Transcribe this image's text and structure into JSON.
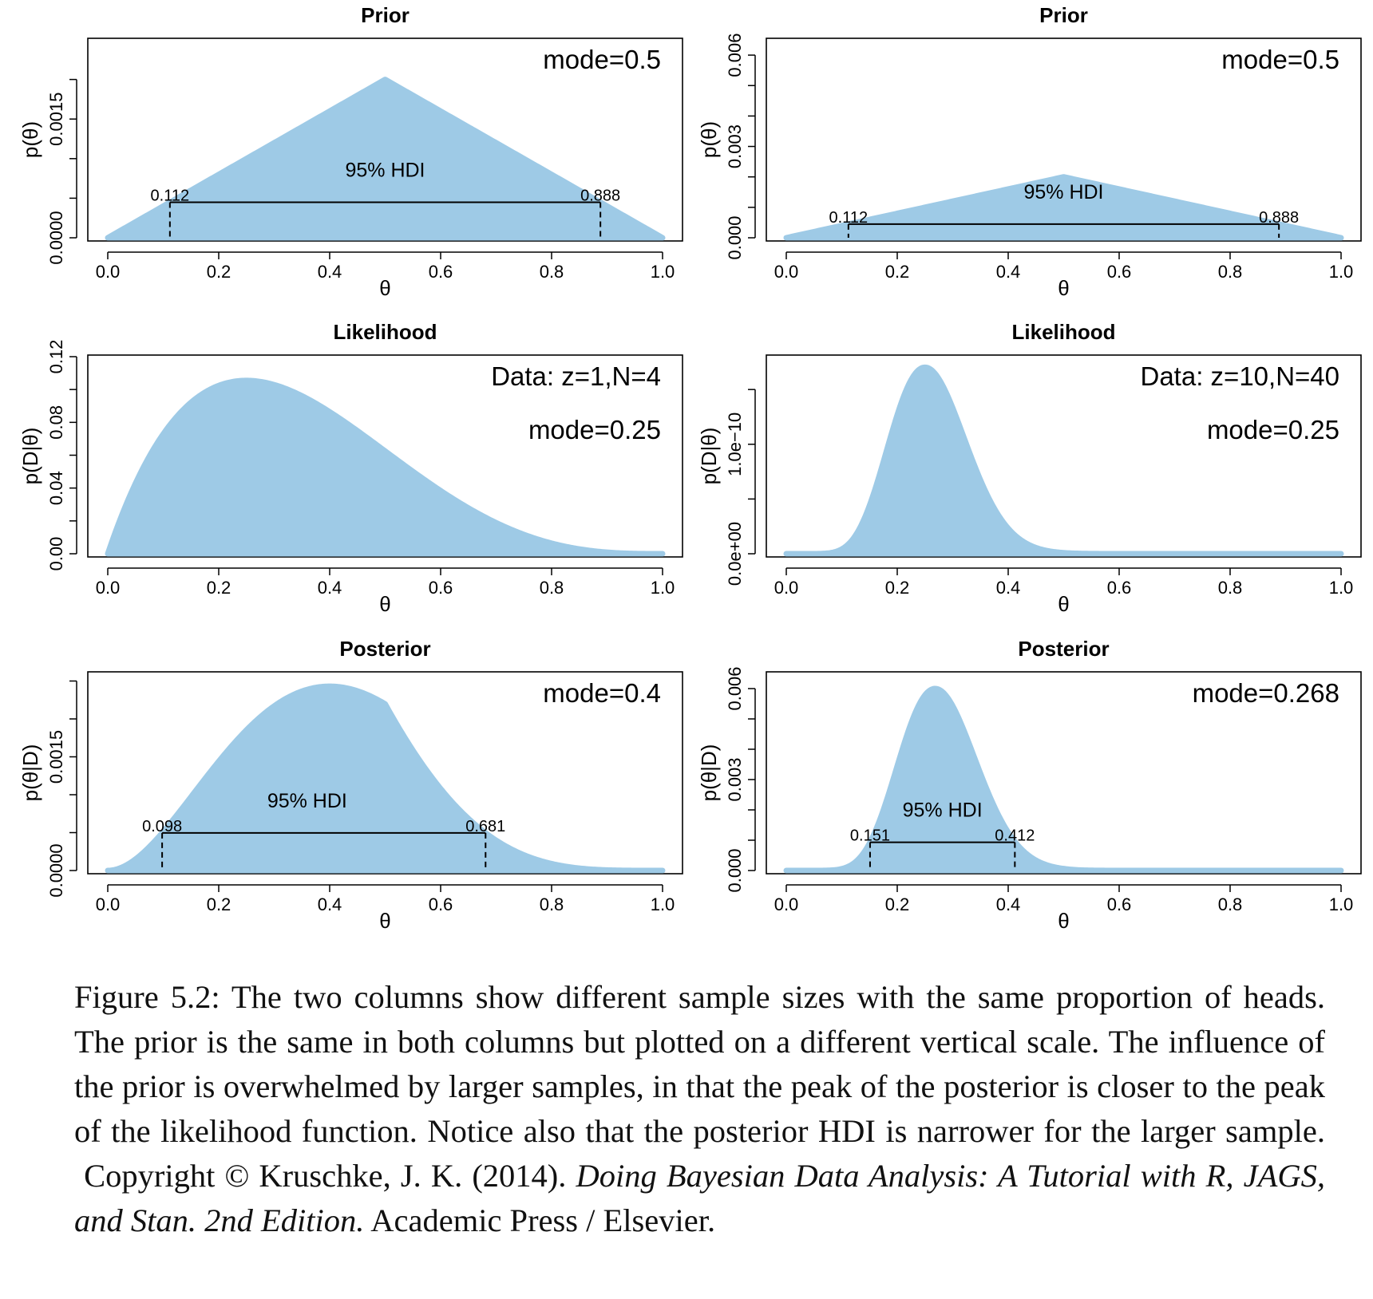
{
  "chart_data": [
    {
      "type": "area",
      "title": "Prior",
      "xlabel": "θ",
      "ylabel": "p(θ)",
      "xlim": [
        0,
        1
      ],
      "ylim": [
        0,
        0.0025
      ],
      "x_ticks": [
        "0.0",
        "0.2",
        "0.4",
        "0.6",
        "0.8",
        "1.0"
      ],
      "y_ticks": [
        "0.0000",
        "0.0015"
      ],
      "y_tick_values": [
        0,
        0.0005,
        0.001,
        0.0015,
        0.002
      ],
      "y_labeled_values": [
        0,
        0.0015
      ],
      "curve": {
        "kind": "triangle",
        "peak_x": 0.5,
        "peak_y": 0.002
      },
      "annotations": [
        "mode=0.5"
      ],
      "hdi": {
        "label": "95% HDI",
        "low": 0.112,
        "high": 0.888,
        "low_label": "0.112",
        "high_label": "0.888"
      }
    },
    {
      "type": "area",
      "title": "Prior",
      "xlabel": "θ",
      "ylabel": "p(θ)",
      "xlim": [
        0,
        1
      ],
      "ylim": [
        0,
        0.0065
      ],
      "x_ticks": [
        "0.0",
        "0.2",
        "0.4",
        "0.6",
        "0.8",
        "1.0"
      ],
      "y_ticks": [
        "0.000",
        "0.003",
        "0.006"
      ],
      "y_tick_values": [
        0,
        0.001,
        0.002,
        0.003,
        0.004,
        0.005,
        0.006
      ],
      "y_labeled_values": [
        0,
        0.003,
        0.006
      ],
      "curve": {
        "kind": "triangle",
        "peak_x": 0.5,
        "peak_y": 0.002
      },
      "annotations": [
        "mode=0.5"
      ],
      "hdi": {
        "label": "95% HDI",
        "low": 0.112,
        "high": 0.888,
        "low_label": "0.112",
        "high_label": "0.888"
      }
    },
    {
      "type": "area",
      "title": "Likelihood",
      "xlabel": "θ",
      "ylabel": "p(D|θ)",
      "xlim": [
        0,
        1
      ],
      "ylim": [
        0,
        0.12
      ],
      "x_ticks": [
        "0.0",
        "0.2",
        "0.4",
        "0.6",
        "0.8",
        "1.0"
      ],
      "y_ticks": [
        "0.00",
        "0.04",
        "0.08",
        "0.12"
      ],
      "y_tick_values": [
        0,
        0.02,
        0.04,
        0.06,
        0.08,
        0.1,
        0.12
      ],
      "y_labeled_values": [
        0,
        0.04,
        0.08,
        0.12
      ],
      "curve": {
        "kind": "bernoulli",
        "z": 1,
        "N": 4
      },
      "annotations": [
        "Data: z=1,N=4",
        "mode=0.25"
      ]
    },
    {
      "type": "area",
      "title": "Likelihood",
      "xlabel": "θ",
      "ylabel": "p(D|θ)",
      "xlim": [
        0,
        1
      ],
      "ylim": [
        0,
        1.8e-10
      ],
      "x_ticks": [
        "0.0",
        "0.2",
        "0.4",
        "0.6",
        "0.8",
        "1.0"
      ],
      "y_ticks": [
        "0.0e+00",
        "1.0e−10"
      ],
      "y_tick_values": [
        0,
        5e-11,
        1e-10,
        1.5e-10
      ],
      "y_labeled_values": [
        0,
        1e-10
      ],
      "curve": {
        "kind": "bernoulli",
        "z": 10,
        "N": 40
      },
      "annotations": [
        "Data: z=10,N=40",
        "mode=0.25"
      ]
    },
    {
      "type": "area",
      "title": "Posterior",
      "xlabel": "θ",
      "ylabel": "p(θ|D)",
      "xlim": [
        0,
        1
      ],
      "ylim": [
        0,
        0.0026
      ],
      "x_ticks": [
        "0.0",
        "0.2",
        "0.4",
        "0.6",
        "0.8",
        "1.0"
      ],
      "y_ticks": [
        "0.0000",
        "0.0015"
      ],
      "y_tick_values": [
        0,
        0.0005,
        0.001,
        0.0015,
        0.002,
        0.0025
      ],
      "y_labeled_values": [
        0,
        0.0015
      ],
      "curve": {
        "kind": "posterior",
        "z": 1,
        "N": 4,
        "peak_y": 0.00243
      },
      "annotations": [
        "mode=0.4"
      ],
      "hdi": {
        "label": "95% HDI",
        "low": 0.098,
        "high": 0.681,
        "low_label": "0.098",
        "high_label": "0.681"
      }
    },
    {
      "type": "area",
      "title": "Posterior",
      "xlabel": "θ",
      "ylabel": "p(θ|D)",
      "xlim": [
        0,
        1
      ],
      "ylim": [
        0,
        0.0065
      ],
      "x_ticks": [
        "0.0",
        "0.2",
        "0.4",
        "0.6",
        "0.8",
        "1.0"
      ],
      "y_ticks": [
        "0.000",
        "0.003",
        "0.006"
      ],
      "y_tick_values": [
        0,
        0.001,
        0.002,
        0.003,
        0.004,
        0.005,
        0.006
      ],
      "y_labeled_values": [
        0,
        0.003,
        0.006
      ],
      "curve": {
        "kind": "posterior",
        "z": 10,
        "N": 40,
        "peak_y": 0.006
      },
      "annotations": [
        "mode=0.268"
      ],
      "hdi": {
        "label": "95% HDI",
        "low": 0.151,
        "high": 0.412,
        "low_label": "0.151",
        "high_label": "0.412"
      }
    }
  ],
  "colors": {
    "fill": "#9ecae6",
    "axis": "#000000"
  },
  "caption": {
    "figure_label": "Figure 5.2:",
    "text": "The two columns show different sample sizes with the same proportion of heads. The prior is the same in both columns but plotted on a different vertical scale. The influence of the prior is overwhelmed by larger samples, in that the peak of the posterior is closer to the peak of the likelihood function. Notice also that the posterior HDI is narrower for the larger sample.",
    "copyright": "Copyright © Kruschke, J. K. (2014).",
    "book_title": "Doing Bayesian Data Analysis: A Tutorial with R, JAGS, and Stan. 2nd Edition.",
    "publisher": "Academic Press / Elsevier."
  }
}
